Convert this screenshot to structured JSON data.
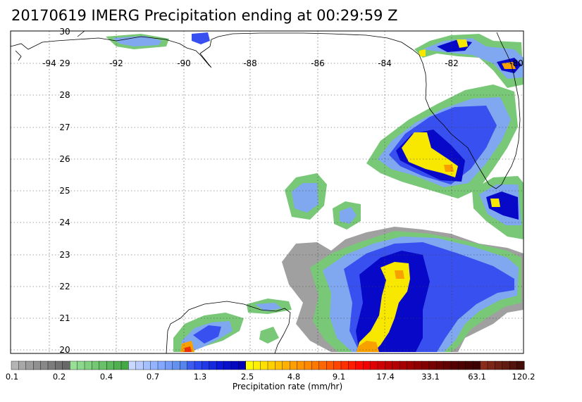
{
  "title": "20170619 IMERG Precipitation ending at 00:29:59 Z",
  "map": {
    "lon_labels": [
      "-94",
      "-92",
      "-90",
      "-88",
      "-86",
      "-84",
      "-82",
      "-80"
    ],
    "lat_labels": [
      "30",
      "29",
      "28",
      "27",
      "26",
      "25",
      "24",
      "23",
      "22",
      "21",
      "20"
    ],
    "lon_range": [
      -94.9,
      -79.9
    ],
    "lat_range": [
      19.9,
      30.05
    ]
  },
  "colorbar": {
    "title": "Precipitation rate (mm/hr)",
    "tick_labels": [
      "0.1",
      "0.2",
      "0.4",
      "0.7",
      "1.3",
      "2.5",
      "4.8",
      "9.1",
      "17.4",
      "33.1",
      "63.1",
      "120.2"
    ],
    "colors": [
      "#b4b4b4",
      "#a8a8a8",
      "#9c9c9c",
      "#909090",
      "#888888",
      "#7c7c7c",
      "#727272",
      "#686868",
      "#98e098",
      "#8cd88c",
      "#80d080",
      "#74c874",
      "#68c068",
      "#5cb85c",
      "#50b050",
      "#44a844",
      "#c8d8ff",
      "#b8ccff",
      "#a4c0ff",
      "#94b4ff",
      "#84a8ff",
      "#749cf8",
      "#6490f0",
      "#5484ec",
      "#3c5cf0",
      "#2c48f0",
      "#2038e8",
      "#1428e0",
      "#0c18d8",
      "#0810cc",
      "#0408c0",
      "#0000b4",
      "#ffff00",
      "#ffef00",
      "#ffe000",
      "#ffd000",
      "#ffc000",
      "#ffb000",
      "#ffa000",
      "#ff9400",
      "#ff8800",
      "#ff7800",
      "#ff6800",
      "#ff5800",
      "#ff4400",
      "#ff3000",
      "#ff1c00",
      "#ff0800",
      "#f00000",
      "#e00000",
      "#d00000",
      "#c00000",
      "#b40000",
      "#a80000",
      "#9c0000",
      "#900000",
      "#840000",
      "#780000",
      "#6c0000",
      "#600000",
      "#540000",
      "#4c0000",
      "#440000",
      "#3c0000",
      "#8a2c1c",
      "#7c2618",
      "#6e2014",
      "#601a10",
      "#52140c",
      "#440e08"
    ]
  },
  "precip_colors": {
    "gray": "#a0a0a0",
    "green": "#78c878",
    "lightblue": "#80a8f0",
    "blue": "#3850f0",
    "darkblue": "#0808c8",
    "yellow": "#f8e800",
    "orange": "#f8a000",
    "red": "#f03000"
  }
}
